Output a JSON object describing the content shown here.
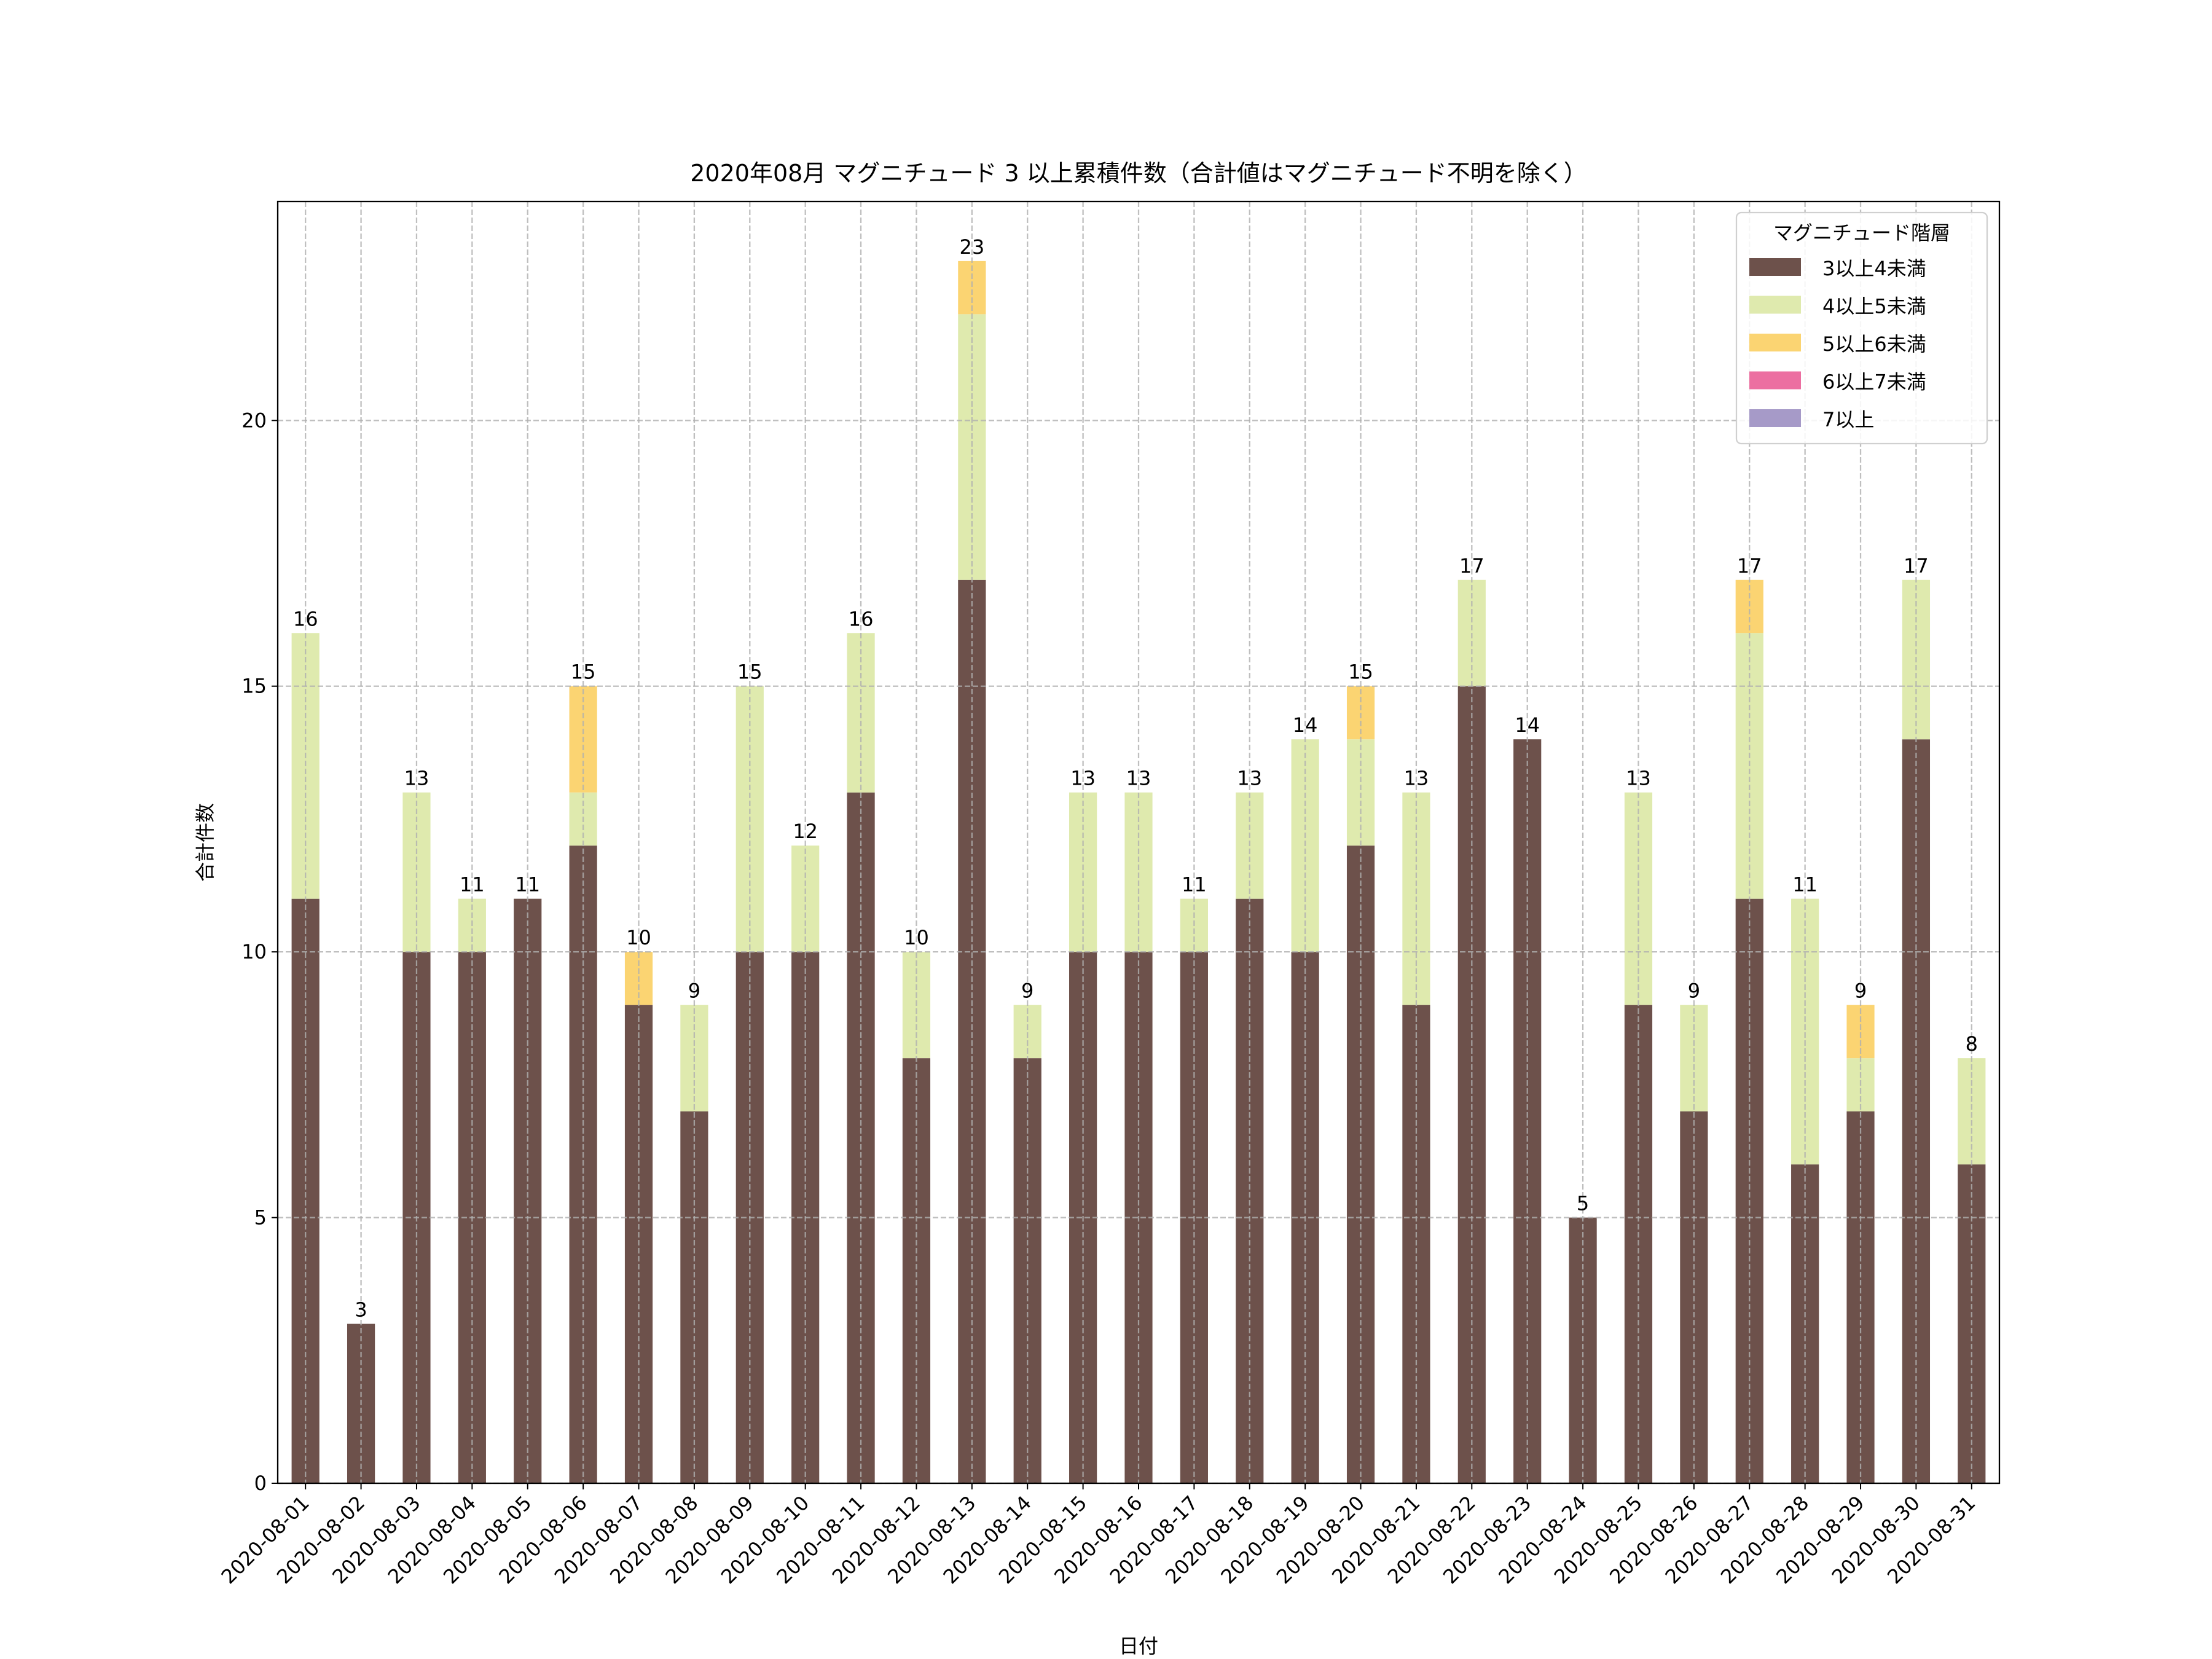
{
  "chart_data": {
    "type": "bar",
    "stacked": true,
    "title": "2020年08月 マグニチュード 3 以上累積件数（合計値はマグニチュード不明を除く）",
    "xlabel": "日付",
    "ylabel": "合計件数",
    "ylim": [
      0,
      24.12
    ],
    "yticks": [
      0,
      5,
      10,
      15,
      20
    ],
    "grid": true,
    "legend": {
      "title": "マグニチュード階層",
      "placement": "top-right"
    },
    "categories": [
      "2020-08-01",
      "2020-08-02",
      "2020-08-03",
      "2020-08-04",
      "2020-08-05",
      "2020-08-06",
      "2020-08-07",
      "2020-08-08",
      "2020-08-09",
      "2020-08-10",
      "2020-08-11",
      "2020-08-12",
      "2020-08-13",
      "2020-08-14",
      "2020-08-15",
      "2020-08-16",
      "2020-08-17",
      "2020-08-18",
      "2020-08-19",
      "2020-08-20",
      "2020-08-21",
      "2020-08-22",
      "2020-08-23",
      "2020-08-24",
      "2020-08-25",
      "2020-08-26",
      "2020-08-27",
      "2020-08-28",
      "2020-08-29",
      "2020-08-30",
      "2020-08-31"
    ],
    "series": [
      {
        "name": "3以上4未満",
        "color": "#6d514b",
        "values": [
          11,
          3,
          10,
          10,
          11,
          12,
          9,
          7,
          10,
          10,
          13,
          8,
          17,
          8,
          10,
          10,
          10,
          11,
          10,
          12,
          9,
          15,
          14,
          5,
          9,
          7,
          11,
          6,
          7,
          14,
          6
        ]
      },
      {
        "name": "4以上5未満",
        "color": "#dfeaae",
        "values": [
          5,
          0,
          3,
          1,
          0,
          1,
          0,
          2,
          5,
          2,
          3,
          2,
          5,
          1,
          3,
          3,
          1,
          2,
          4,
          2,
          4,
          2,
          0,
          0,
          4,
          2,
          5,
          5,
          1,
          3,
          2
        ]
      },
      {
        "name": "5以上6未満",
        "color": "#fbd472",
        "values": [
          0,
          0,
          0,
          0,
          0,
          2,
          1,
          0,
          0,
          0,
          0,
          0,
          1,
          0,
          0,
          0,
          0,
          0,
          0,
          1,
          0,
          0,
          0,
          0,
          0,
          0,
          1,
          0,
          1,
          0,
          0
        ]
      },
      {
        "name": "6以上7未満",
        "color": "#ec6fa1",
        "values": [
          0,
          0,
          0,
          0,
          0,
          0,
          0,
          0,
          0,
          0,
          0,
          0,
          0,
          0,
          0,
          0,
          0,
          0,
          0,
          0,
          0,
          0,
          0,
          0,
          0,
          0,
          0,
          0,
          0,
          0,
          0
        ]
      },
      {
        "name": "7以上",
        "color": "#a69ac8",
        "values": [
          0,
          0,
          0,
          0,
          0,
          0,
          0,
          0,
          0,
          0,
          0,
          0,
          0,
          0,
          0,
          0,
          0,
          0,
          0,
          0,
          0,
          0,
          0,
          0,
          0,
          0,
          0,
          0,
          0,
          0,
          0
        ]
      }
    ],
    "totals": [
      16,
      3,
      13,
      11,
      11,
      15,
      10,
      9,
      15,
      12,
      16,
      10,
      23,
      9,
      13,
      13,
      11,
      13,
      14,
      15,
      13,
      17,
      14,
      5,
      13,
      9,
      17,
      11,
      9,
      17,
      8
    ]
  }
}
